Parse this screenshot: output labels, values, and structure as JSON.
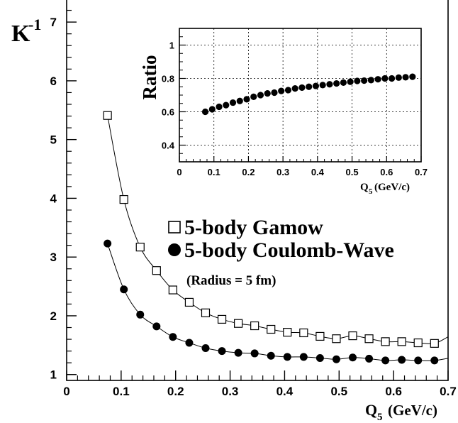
{
  "chart_data": [
    {
      "type": "line",
      "ylabel": "K",
      "ylabel_sup": "-1",
      "xlabel": "Q",
      "xlabel_sub": "5",
      "xlabel_unit": "(GeV/c)",
      "xlim": [
        0,
        0.7
      ],
      "ylim": [
        0.9,
        7.4
      ],
      "xticks": [
        "0",
        "0.1",
        "0.2",
        "0.3",
        "0.4",
        "0.5",
        "0.6",
        "0.7"
      ],
      "yticks": [
        "1",
        "2",
        "3",
        "4",
        "5",
        "6",
        "7"
      ],
      "grid": false,
      "legend_placement": "center-right",
      "series": [
        {
          "name": "5-body Gamow",
          "marker": "open-square",
          "x": [
            0.075,
            0.105,
            0.135,
            0.165,
            0.195,
            0.225,
            0.255,
            0.285,
            0.315,
            0.345,
            0.375,
            0.405,
            0.435,
            0.465,
            0.495,
            0.525,
            0.555,
            0.585,
            0.615,
            0.645,
            0.675
          ],
          "values": [
            5.41,
            3.98,
            3.17,
            2.77,
            2.44,
            2.23,
            2.05,
            1.94,
            1.87,
            1.83,
            1.77,
            1.72,
            1.71,
            1.65,
            1.61,
            1.66,
            1.61,
            1.56,
            1.56,
            1.54,
            1.53
          ]
        },
        {
          "name": "5-body Coulomb-Wave",
          "marker": "filled-circle",
          "x": [
            0.075,
            0.105,
            0.135,
            0.165,
            0.195,
            0.225,
            0.255,
            0.285,
            0.315,
            0.345,
            0.375,
            0.405,
            0.435,
            0.465,
            0.495,
            0.525,
            0.555,
            0.585,
            0.615,
            0.645,
            0.675
          ],
          "values": [
            3.23,
            2.45,
            2.02,
            1.82,
            1.64,
            1.54,
            1.45,
            1.4,
            1.37,
            1.36,
            1.32,
            1.3,
            1.3,
            1.28,
            1.26,
            1.29,
            1.27,
            1.24,
            1.25,
            1.24,
            1.24
          ]
        }
      ],
      "annotation": "(Radius = 5 fm)"
    },
    {
      "type": "scatter",
      "ylabel": "Ratio",
      "xlabel": "Q",
      "xlabel_sub": "5",
      "xlabel_unit": "(GeV/c)",
      "xlim": [
        0,
        0.7
      ],
      "ylim": [
        0.3,
        1.1
      ],
      "xticks": [
        "0",
        "0.1",
        "0.2",
        "0.3",
        "0.4",
        "0.5",
        "0.6",
        "0.7"
      ],
      "yticks": [
        "0.4",
        "0.6",
        "0.8",
        "1"
      ],
      "grid": true,
      "series": [
        {
          "marker": "filled-circle",
          "x": [
            0.075,
            0.095,
            0.115,
            0.135,
            0.155,
            0.175,
            0.195,
            0.215,
            0.235,
            0.255,
            0.275,
            0.295,
            0.315,
            0.335,
            0.355,
            0.375,
            0.395,
            0.415,
            0.435,
            0.455,
            0.475,
            0.495,
            0.515,
            0.535,
            0.555,
            0.575,
            0.595,
            0.615,
            0.635,
            0.655,
            0.675
          ],
          "values": [
            0.6,
            0.615,
            0.63,
            0.64,
            0.655,
            0.665,
            0.675,
            0.69,
            0.7,
            0.71,
            0.715,
            0.725,
            0.73,
            0.74,
            0.745,
            0.75,
            0.755,
            0.76,
            0.765,
            0.77,
            0.775,
            0.78,
            0.785,
            0.787,
            0.79,
            0.795,
            0.8,
            0.8,
            0.805,
            0.807,
            0.81
          ]
        }
      ]
    }
  ]
}
